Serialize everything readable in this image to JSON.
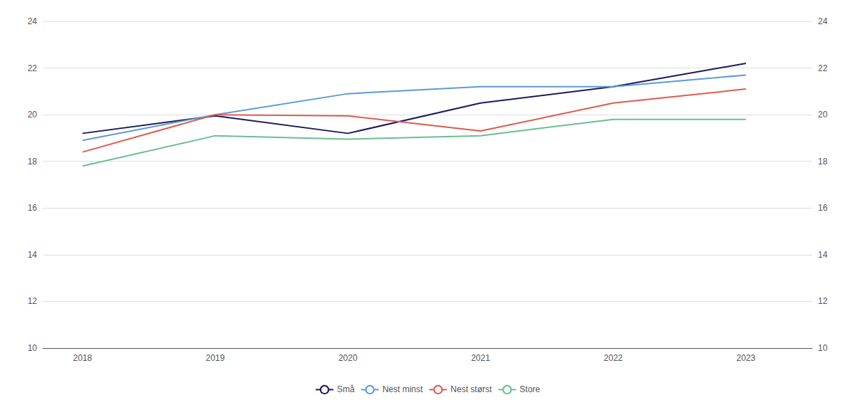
{
  "chart_data": {
    "type": "line",
    "x": [
      2018,
      2019,
      2020,
      2021,
      2022,
      2023
    ],
    "series": [
      {
        "name": "Små",
        "color": "#1a1a5e",
        "values": [
          19.2,
          19.95,
          19.2,
          20.5,
          21.2,
          22.2
        ]
      },
      {
        "name": "Nest minst",
        "color": "#5b9bd5",
        "values": [
          18.9,
          20.0,
          20.9,
          21.2,
          21.2,
          21.7
        ]
      },
      {
        "name": "Nest størst",
        "color": "#e05a4e",
        "values": [
          18.4,
          20.0,
          19.95,
          19.3,
          20.5,
          21.1
        ]
      },
      {
        "name": "Store",
        "color": "#6abf8e",
        "values": [
          17.8,
          19.1,
          18.95,
          19.1,
          19.8,
          19.8
        ]
      }
    ],
    "xlim": [
      2017.7,
      2023.5
    ],
    "xticks": [
      2018,
      2019,
      2020,
      2021,
      2022,
      2023
    ],
    "ylim": [
      10,
      24
    ],
    "yticks": [
      10,
      12,
      14,
      16,
      18,
      20,
      22,
      24
    ],
    "y2lim": [
      10,
      24
    ],
    "y2ticks": [
      10,
      12,
      14,
      16,
      18,
      20,
      22,
      24
    ],
    "grid": true,
    "legend": "bottom"
  }
}
